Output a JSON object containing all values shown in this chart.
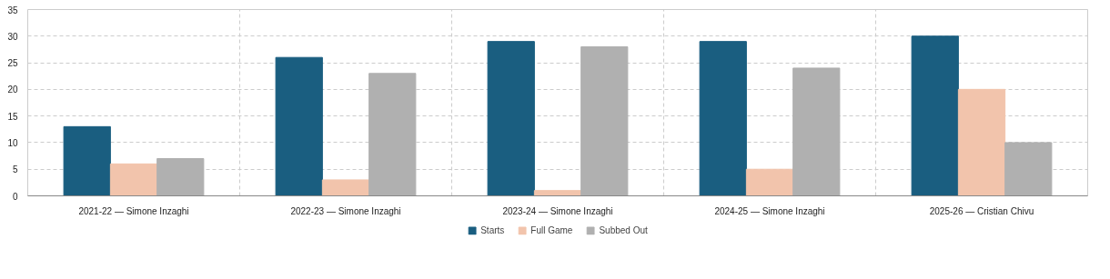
{
  "chart_data": {
    "type": "bar",
    "categories": [
      "2021-22 — Simone Inzaghi",
      "2022-23 — Simone Inzaghi",
      "2023-24 — Simone Inzaghi",
      "2024-25 — Simone Inzaghi",
      "2025-26 — Cristian Chivu"
    ],
    "series": [
      {
        "name": "Starts",
        "color": "#1a5e80",
        "values": [
          13,
          26,
          29,
          29,
          30
        ]
      },
      {
        "name": "Full Game",
        "color": "#f2c4ac",
        "values": [
          6,
          3,
          1,
          5,
          20
        ]
      },
      {
        "name": "Subbed Out",
        "color": "#b0b0b0",
        "values": [
          7,
          23,
          28,
          24,
          10
        ]
      }
    ],
    "ylim": [
      0,
      35
    ],
    "yticks": [
      0,
      5,
      10,
      15,
      20,
      25,
      30,
      35
    ],
    "grid": true,
    "legend": "bottom"
  }
}
